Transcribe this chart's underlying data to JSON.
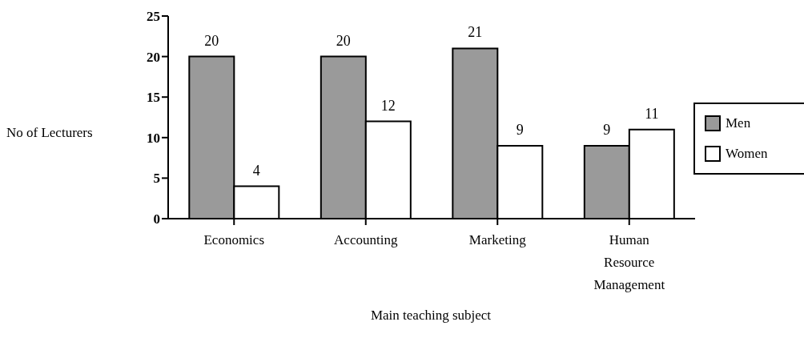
{
  "chart_data": {
    "type": "bar",
    "xlabel": "Main teaching subject",
    "ylabel": "No of Lecturers",
    "categories": [
      "Economics",
      "Accounting",
      "Marketing",
      "Human Resource Management"
    ],
    "series": [
      {
        "name": "Men",
        "color": "#9a9a9a",
        "values": [
          20,
          20,
          21,
          9
        ]
      },
      {
        "name": "Women",
        "color": "#ffffff",
        "values": [
          4,
          12,
          9,
          11
        ]
      }
    ],
    "ylim": [
      0,
      25
    ],
    "yticks": [
      0,
      5,
      10,
      15,
      20,
      25
    ],
    "data_labels": true,
    "legend": "right"
  }
}
